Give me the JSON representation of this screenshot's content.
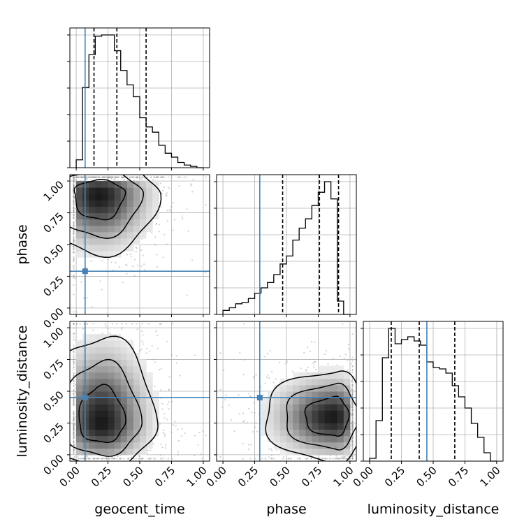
{
  "chart_data": {
    "type": "corner",
    "parameters": [
      "geocent_time",
      "phase",
      "luminosity_distance"
    ],
    "axis_range": [
      -0.05,
      1.05
    ],
    "tick_values": [
      0.0,
      0.25,
      0.5,
      0.75,
      1.0
    ],
    "tick_labels": [
      "0.00",
      "0.25",
      "0.50",
      "0.75",
      "1.00"
    ],
    "grid": true,
    "truths": {
      "geocent_time": 0.07,
      "phase": 0.29,
      "luminosity_distance": 0.45
    },
    "quantiles": {
      "geocent_time": [
        0.14,
        0.32,
        0.55
      ],
      "phase": [
        0.47,
        0.76,
        0.91
      ],
      "luminosity_distance": [
        0.17,
        0.39,
        0.67
      ]
    },
    "histograms": {
      "geocent_time": {
        "bin_start": 0.0,
        "bin_width": 0.05,
        "values": [
          0.06,
          0.61,
          0.86,
          1.0,
          1.01,
          1.01,
          0.89,
          0.74,
          0.63,
          0.54,
          0.38,
          0.31,
          0.27,
          0.17,
          0.11,
          0.08,
          0.04,
          0.02,
          0.01,
          0.0
        ]
      },
      "phase": {
        "bin_start": 0.0,
        "bin_width": 0.05,
        "values": [
          0.03,
          0.05,
          0.08,
          0.09,
          0.12,
          0.16,
          0.2,
          0.24,
          0.3,
          0.38,
          0.44,
          0.56,
          0.65,
          0.72,
          0.82,
          0.92,
          1.0,
          0.87,
          0.1,
          0.0
        ]
      },
      "luminosity_distance": {
        "bin_start": 0.0,
        "bin_width": 0.05,
        "values": [
          0.02,
          0.29,
          0.74,
          0.95,
          0.84,
          0.87,
          0.89,
          0.86,
          0.83,
          0.71,
          0.67,
          0.66,
          0.63,
          0.54,
          0.46,
          0.38,
          0.27,
          0.17,
          0.06,
          0.0
        ]
      }
    },
    "density_2d": [
      {
        "x": "geocent_time",
        "y": "phase",
        "mode": [
          0.18,
          0.9
        ],
        "spread": [
          0.22,
          0.12
        ],
        "tail": "down"
      },
      {
        "x": "geocent_time",
        "y": "luminosity_distance",
        "mode": [
          0.2,
          0.25
        ],
        "spread": [
          0.2,
          0.17
        ],
        "tail": "up"
      },
      {
        "x": "phase",
        "y": "luminosity_distance",
        "mode": [
          0.88,
          0.3
        ],
        "spread": [
          0.12,
          0.17
        ],
        "tail": "left"
      }
    ],
    "colors": {
      "truth": "#4682b4",
      "hist": "#000000",
      "points": "#9a9a9a",
      "grid": "#b0b0b0"
    }
  }
}
